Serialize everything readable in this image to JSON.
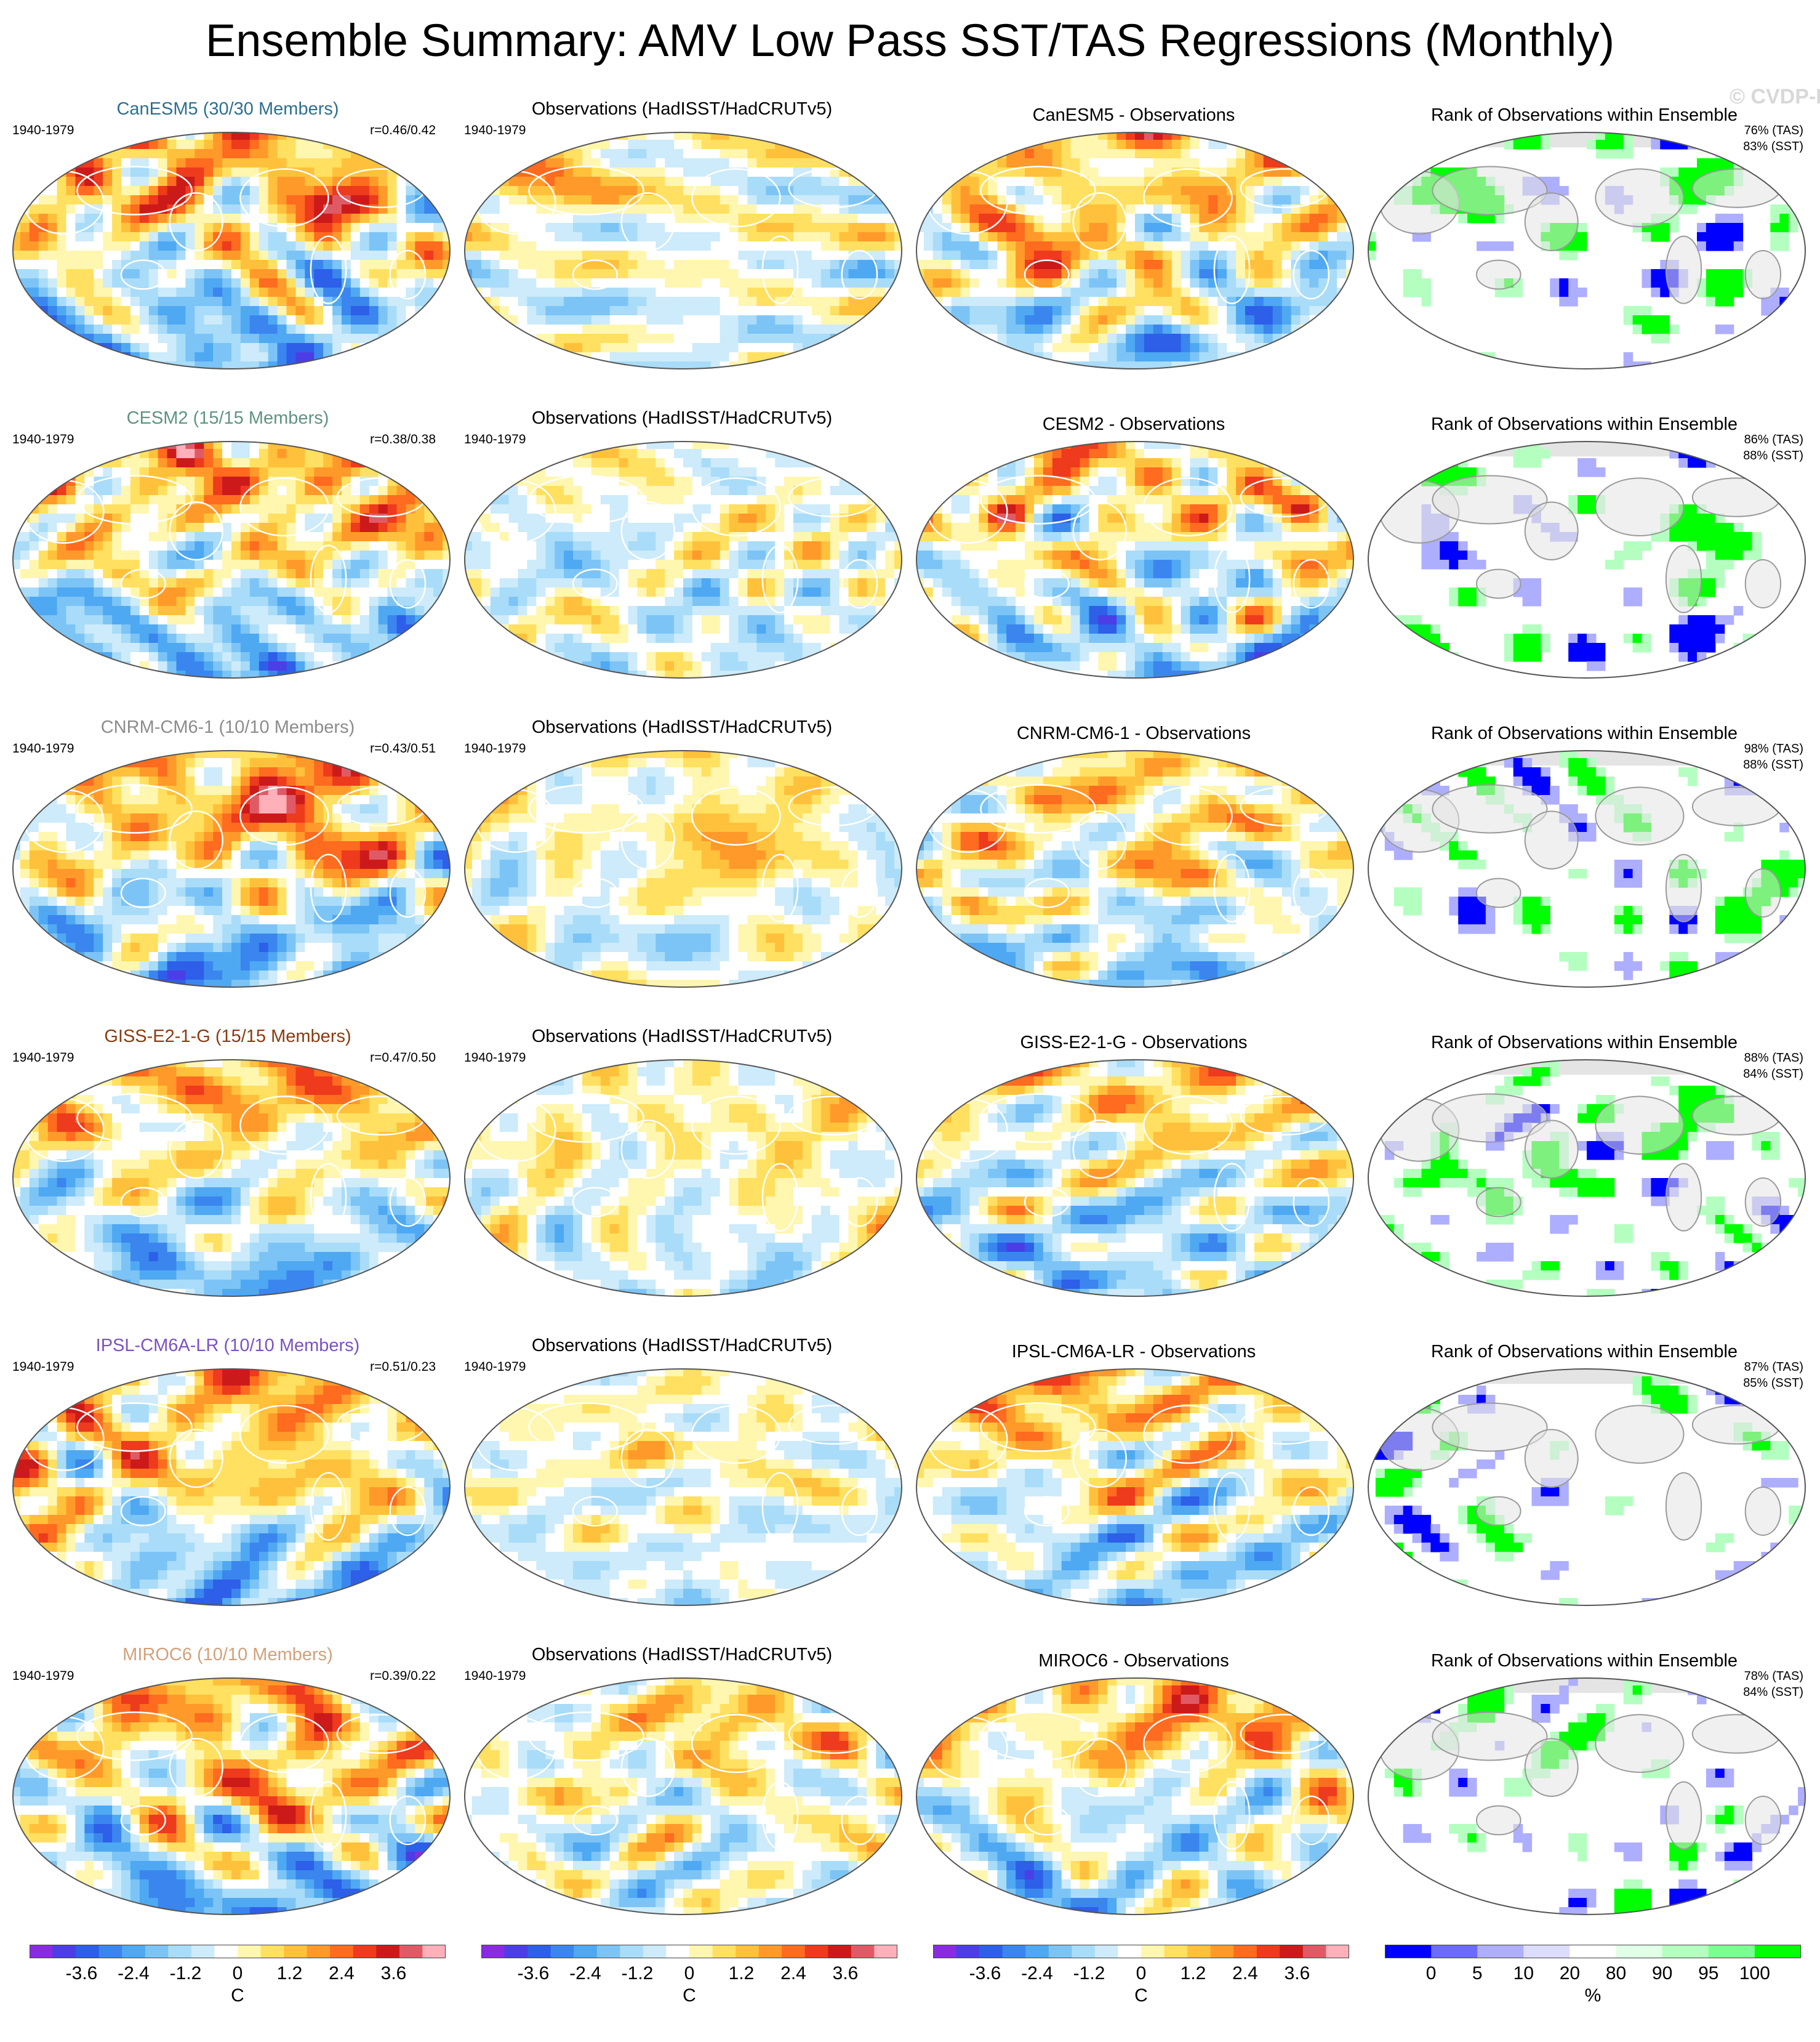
{
  "title": "Ensemble Summary: AMV Low Pass SST/TAS Regressions (Monthly)",
  "watermark": "© CVDP-LE",
  "colors": {
    "coastline": "#ffffff",
    "coastline_rank": "#9a9a9a",
    "land_rank": "#e4e4e4",
    "diverging": [
      "#8a2be2",
      "#4b3ee6",
      "#2d5fe8",
      "#3a86ee",
      "#4fa8f2",
      "#7cc4f6",
      "#a9dcf8",
      "#cdebfa",
      "#ffffff",
      "#fff6b0",
      "#ffe060",
      "#ffc13b",
      "#ff9a2a",
      "#ff6b1f",
      "#ee3a1d",
      "#cc1a1a",
      "#e05a66",
      "#ffb0b8"
    ],
    "rank": [
      "#0000ff",
      "#6b6bff",
      "#aeaeff",
      "#dcdcff",
      "#ffffff",
      "#e0ffe6",
      "#b4ffc0",
      "#7bff90",
      "#00ff00"
    ]
  },
  "columns": [
    "model",
    "Observations (HadISST/HadCRUTv5)",
    "model - Observations",
    "Rank of Observations within Ensemble"
  ],
  "rows": [
    {
      "model": "CanESM5",
      "title": "CanESM5 (30/30 Members)",
      "title_color": "#2d6f91",
      "period": "1940-1979",
      "r": "r=0.46/0.42",
      "obs_title": "Observations (HadISST/HadCRUTv5)",
      "obs_period": "1940-1979",
      "diff_title": "CanESM5 - Observations",
      "rank_title": "Rank of Observations within Ensemble",
      "tas": "76% (TAS)",
      "sst": "83% (SST)"
    },
    {
      "model": "CESM2",
      "title": "CESM2 (15/15 Members)",
      "title_color": "#5e9480",
      "period": "1940-1979",
      "r": "r=0.38/0.38",
      "obs_title": "Observations (HadISST/HadCRUTv5)",
      "obs_period": "1940-1979",
      "diff_title": "CESM2 - Observations",
      "rank_title": "Rank of Observations within Ensemble",
      "tas": "86% (TAS)",
      "sst": "88% (SST)"
    },
    {
      "model": "CNRM-CM6-1",
      "title": "CNRM-CM6-1 (10/10 Members)",
      "title_color": "#8c8c8c",
      "period": "1940-1979",
      "r": "r=0.43/0.51",
      "obs_title": "Observations (HadISST/HadCRUTv5)",
      "obs_period": "1940-1979",
      "diff_title": "CNRM-CM6-1 - Observations",
      "rank_title": "Rank of Observations within Ensemble",
      "tas": "98% (TAS)",
      "sst": "88% (SST)"
    },
    {
      "model": "GISS-E2-1-G",
      "title": "GISS-E2-1-G (15/15 Members)",
      "title_color": "#8b3a10",
      "period": "1940-1979",
      "r": "r=0.47/0.50",
      "obs_title": "Observations (HadISST/HadCRUTv5)",
      "obs_period": "1940-1979",
      "diff_title": "GISS-E2-1-G - Observations",
      "rank_title": "Rank of Observations within Ensemble",
      "tas": "88% (TAS)",
      "sst": "84% (SST)"
    },
    {
      "model": "IPSL-CM6A-LR",
      "title": "IPSL-CM6A-LR (10/10 Members)",
      "title_color": "#7b52c4",
      "period": "1940-1979",
      "r": "r=0.51/0.23",
      "obs_title": "Observations (HadISST/HadCRUTv5)",
      "obs_period": "1940-1979",
      "diff_title": "IPSL-CM6A-LR - Observations",
      "rank_title": "Rank of Observations within Ensemble",
      "tas": "87% (TAS)",
      "sst": "85% (SST)"
    },
    {
      "model": "MIROC6",
      "title": "MIROC6 (10/10 Members)",
      "title_color": "#d4a07a",
      "period": "1940-1979",
      "r": "r=0.39/0.22",
      "obs_title": "Observations (HadISST/HadCRUTv5)",
      "obs_period": "1940-1979",
      "diff_title": "MIROC6 - Observations",
      "rank_title": "Rank of Observations within Ensemble",
      "tas": "78% (TAS)",
      "sst": "84% (SST)"
    }
  ],
  "colorbars": [
    {
      "type": "diverging",
      "labels": [
        "-3.6",
        "-2.4",
        "-1.2",
        "0",
        "1.2",
        "2.4",
        "3.6"
      ],
      "label_values": [
        -3.6,
        -2.4,
        -1.2,
        0,
        1.2,
        2.4,
        3.6
      ],
      "range": [
        -4.8,
        4.8
      ],
      "unit": "C"
    },
    {
      "type": "diverging",
      "labels": [
        "-3.6",
        "-2.4",
        "-1.2",
        "0",
        "1.2",
        "2.4",
        "3.6"
      ],
      "label_values": [
        -3.6,
        -2.4,
        -1.2,
        0,
        1.2,
        2.4,
        3.6
      ],
      "range": [
        -4.8,
        4.8
      ],
      "unit": "C"
    },
    {
      "type": "diverging",
      "labels": [
        "-3.6",
        "-2.4",
        "-1.2",
        "0",
        "1.2",
        "2.4",
        "3.6"
      ],
      "label_values": [
        -3.6,
        -2.4,
        -1.2,
        0,
        1.2,
        2.4,
        3.6
      ],
      "range": [
        -4.8,
        4.8
      ],
      "unit": "C"
    },
    {
      "type": "rank",
      "labels": [
        "0",
        "5",
        "10",
        "20",
        "80",
        "90",
        "95",
        "100"
      ],
      "unit": "%"
    }
  ],
  "chart_data": {
    "type": "heatmap",
    "title": "Ensemble Summary: AMV Low Pass SST/TAS Regressions (Monthly)",
    "panel_grid": {
      "rows": 6,
      "columns": 4
    },
    "period": "1940-1979",
    "models": [
      "CanESM5",
      "CESM2",
      "CNRM-CM6-1",
      "GISS-E2-1-G",
      "IPSL-CM6A-LR",
      "MIROC6"
    ],
    "members": [
      "30/30",
      "15/15",
      "10/10",
      "15/15",
      "10/10",
      "10/10"
    ],
    "pattern_correlation": [
      [
        0.46,
        0.42
      ],
      [
        0.38,
        0.38
      ],
      [
        0.43,
        0.51
      ],
      [
        0.47,
        0.5
      ],
      [
        0.51,
        0.23
      ],
      [
        0.39,
        0.22
      ]
    ],
    "rank_percent_tas": [
      76,
      86,
      98,
      88,
      87,
      78
    ],
    "rank_percent_sst": [
      83,
      88,
      88,
      84,
      85,
      84
    ],
    "regression_colorbar": {
      "ticks": [
        -3.6,
        -2.4,
        -1.2,
        0,
        1.2,
        2.4,
        3.6
      ],
      "unit": "C"
    },
    "rank_colorbar": {
      "ticks": [
        0,
        5,
        10,
        20,
        80,
        90,
        95,
        100
      ],
      "unit": "%"
    }
  }
}
